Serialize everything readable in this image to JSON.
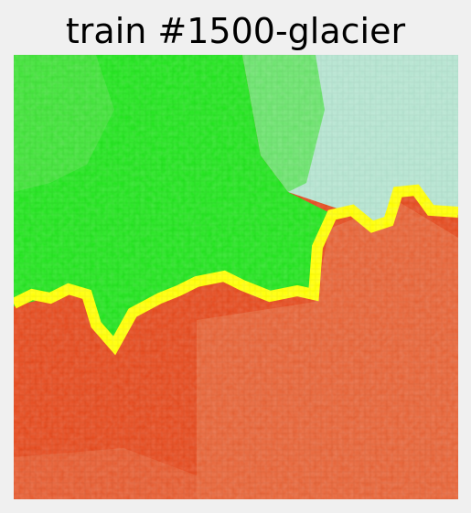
{
  "title": "train #1500-glacier",
  "image": {
    "description": "pixelated forest/glacier scene with segmentation overlay",
    "regions": [
      {
        "name": "upper-region",
        "color": "#1ee31a"
      },
      {
        "name": "lower-region",
        "color": "#e4471a"
      },
      {
        "name": "boundary",
        "color": "#ffff00"
      },
      {
        "name": "sky-patch",
        "color": "#b3e3cf"
      }
    ]
  }
}
